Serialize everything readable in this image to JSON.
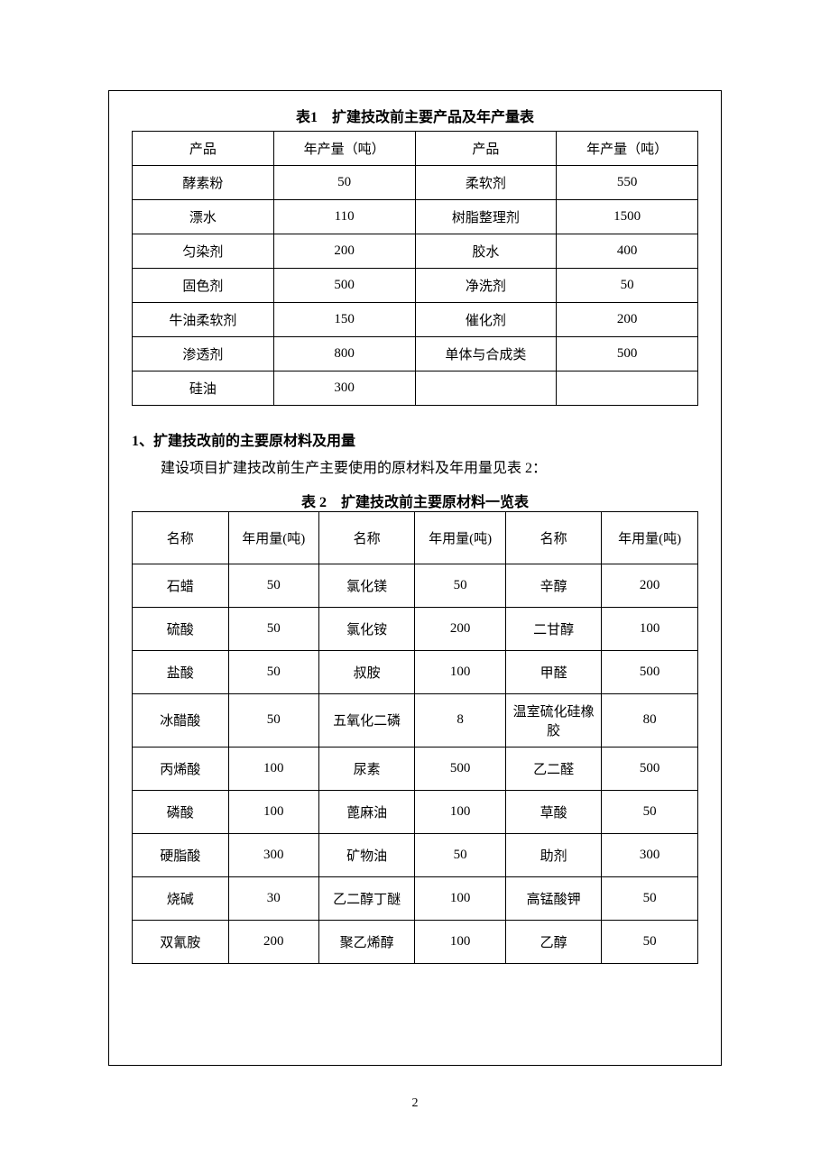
{
  "table1": {
    "title": "表1　扩建技改前主要产品及年产量表",
    "headers": [
      "产品",
      "年产量（吨）",
      "产品",
      "年产量（吨）"
    ],
    "rows": [
      [
        "酵素粉",
        "50",
        "柔软剂",
        "550"
      ],
      [
        "漂水",
        "110",
        "树脂整理剂",
        "1500"
      ],
      [
        "匀染剂",
        "200",
        "胶水",
        "400"
      ],
      [
        "固色剂",
        "500",
        "净洗剂",
        "50"
      ],
      [
        "牛油柔软剂",
        "150",
        "催化剂",
        "200"
      ],
      [
        "渗透剂",
        "800",
        "单体与合成类",
        "500"
      ],
      [
        "硅油",
        "300",
        "",
        ""
      ]
    ],
    "col_widths": [
      "25%",
      "25%",
      "25%",
      "25%"
    ]
  },
  "section1": {
    "heading": "1、扩建技改前的主要原材料及用量",
    "body": "建设项目扩建技改前生产主要使用的原材料及年用量见表 2："
  },
  "table2": {
    "title": "表 2　扩建技改前主要原材料一览表",
    "headers": [
      "名称",
      "年用量(吨)",
      "名称",
      "年用量(吨)",
      "名称",
      "年用量(吨)"
    ],
    "rows": [
      [
        "石蜡",
        "50",
        "氯化镁",
        "50",
        "辛醇",
        "200"
      ],
      [
        "硫酸",
        "50",
        "氯化铵",
        "200",
        "二甘醇",
        "100"
      ],
      [
        "盐酸",
        "50",
        "叔胺",
        "100",
        "甲醛",
        "500"
      ],
      [
        "冰醋酸",
        "50",
        "五氧化二磷",
        "8",
        "温室硫化硅橡胶",
        "80"
      ],
      [
        "丙烯酸",
        "100",
        "尿素",
        "500",
        "乙二醛",
        "500"
      ],
      [
        "磷酸",
        "100",
        "蓖麻油",
        "100",
        "草酸",
        "50"
      ],
      [
        "硬脂酸",
        "300",
        "矿物油",
        "50",
        "助剂",
        "300"
      ],
      [
        "烧碱",
        "30",
        "乙二醇丁醚",
        "100",
        "高锰酸钾",
        "50"
      ],
      [
        "双氰胺",
        "200",
        "聚乙烯醇",
        "100",
        "乙醇",
        "50"
      ]
    ],
    "col_widths": [
      "17%",
      "16%",
      "17%",
      "16%",
      "17%",
      "17%"
    ]
  },
  "page_number": "2",
  "colors": {
    "border": "#000000",
    "text": "#000000",
    "background": "#ffffff"
  }
}
